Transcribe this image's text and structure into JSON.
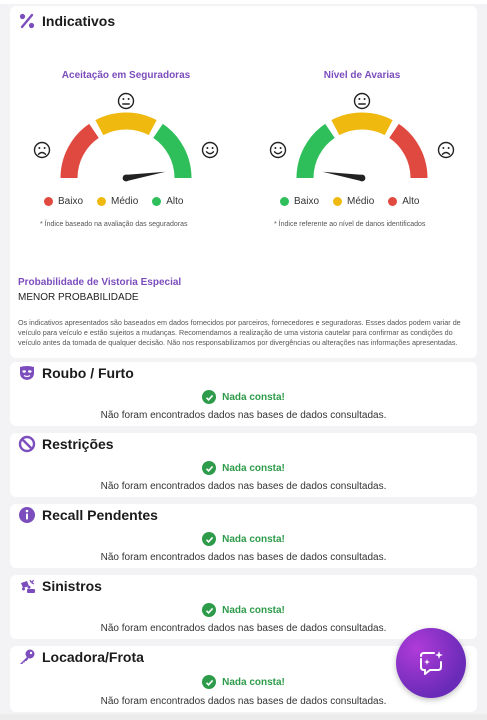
{
  "indicativos": {
    "title": "Indicativos",
    "gauge_seguradoras": {
      "title": "Aceitação em Seguradoras",
      "legend": [
        "Baixo",
        "Médio",
        "Alto"
      ],
      "note": "* Índice baseado na avaliação das seguradoras",
      "level": 0.95
    },
    "gauge_avarias": {
      "title": "Nível de Avarias",
      "legend": [
        "Baixo",
        "Médio",
        "Alto"
      ],
      "note": "* Índice referente ao nível de danos identificados",
      "level": 0.05
    },
    "colors": {
      "low": "#e0493f",
      "mid": "#f0b90f",
      "high": "#2fbf5a"
    },
    "vistoria_label": "Probabilidade de Vistoria Especial",
    "vistoria_value": "MENOR PROBABILIDADE",
    "disclaimer": "Os indicativos apresentados são baseados em dados fornecidos por parceiros, fornecedores e seguradoras. Esses dados podem variar de veículo para veículo e estão sujeitos a mudanças. Recomendamos a realização de uma vistoria cautelar para confirmar as condições do veículo antes da tomada de qualquer decisão. Não nos responsabilizamos por divergências ou alterações nas informações apresentadas."
  },
  "sections": [
    {
      "title": "Roubo / Furto",
      "status": "Nada consta!",
      "message": "Não foram encontrados dados nas bases de dados consultadas.",
      "icon": "mask-icon"
    },
    {
      "title": "Restrições",
      "status": "Nada consta!",
      "message": "Não foram encontrados dados nas bases de dados consultadas.",
      "icon": "ban-icon"
    },
    {
      "title": "Recall Pendentes",
      "status": "Nada consta!",
      "message": "Não foram encontrados dados nas bases de dados consultadas.",
      "icon": "info-icon"
    },
    {
      "title": "Sinistros",
      "status": "Nada consta!",
      "message": "Não foram encontrados dados nas bases de dados consultadas.",
      "icon": "car-crash-icon"
    },
    {
      "title": "Locadora/Frota",
      "status": "Nada consta!",
      "message": "Não foram encontrados dados nas bases de dados consultadas.",
      "icon": "key-icon"
    }
  ],
  "accent": "#7c4dbd",
  "ok_color": "#2e9b4a"
}
